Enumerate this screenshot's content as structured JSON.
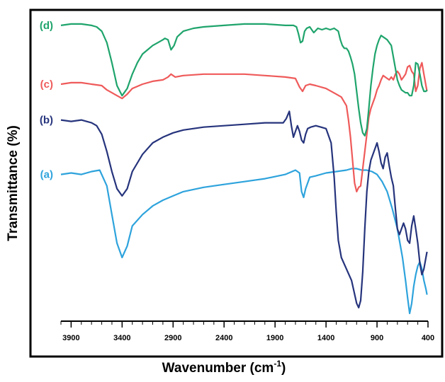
{
  "chart_data": {
    "type": "line",
    "title": "",
    "xlabel": "Wavenumber (cm",
    "xlabel_sup": "-1",
    "xlabel_tail": ")",
    "ylabel": "Transmittance (%)",
    "xlim": [
      4000,
      400
    ],
    "x_reversed": true,
    "x_ticks": [
      3900,
      3400,
      2900,
      2400,
      1900,
      1400,
      900,
      400
    ],
    "x_tick_labels": [
      "3900",
      "3400",
      "2900",
      "2400",
      "1900",
      "1400",
      "900",
      "400"
    ],
    "ylim": [
      0,
      100
    ],
    "y_ticks_shown": false,
    "grid": false,
    "legend": "inline-left",
    "series": [
      {
        "name": "(a)",
        "color": "#2ea3dc",
        "x": [
          4000,
          3900,
          3800,
          3700,
          3620,
          3550,
          3500,
          3450,
          3400,
          3350,
          3300,
          3200,
          3100,
          3000,
          2900,
          2800,
          2600,
          2400,
          2200,
          2000,
          1800,
          1700,
          1660,
          1640,
          1620,
          1600,
          1560,
          1500,
          1400,
          1300,
          1200,
          1150,
          1100,
          1050,
          1000,
          950,
          900,
          850,
          800,
          750,
          700,
          650,
          620,
          600,
          580,
          560,
          540,
          520,
          500,
          480,
          460,
          440,
          420,
          410
        ],
        "y": [
          49.0,
          49.5,
          49.0,
          50.0,
          50.5,
          45.0,
          35.0,
          25.0,
          20.0,
          24.0,
          31.0,
          35.0,
          38.0,
          40.0,
          41.5,
          43.0,
          44.5,
          45.5,
          46.5,
          47.5,
          49.0,
          50.5,
          49.5,
          43.0,
          41.0,
          44.0,
          48.0,
          48.5,
          49.5,
          50.0,
          50.5,
          51.0,
          51.0,
          50.5,
          50.5,
          50.0,
          49.0,
          46.5,
          43.0,
          37.0,
          30.0,
          20.0,
          12.0,
          6.0,
          0.5,
          4.0,
          10.0,
          14.0,
          17.0,
          18.5,
          16.0,
          12.0,
          9.0,
          7.0
        ]
      },
      {
        "name": "(b)",
        "color": "#26347c",
        "x": [
          4000,
          3900,
          3800,
          3700,
          3650,
          3600,
          3550,
          3500,
          3450,
          3400,
          3350,
          3300,
          3200,
          3100,
          3000,
          2900,
          2800,
          2600,
          2400,
          2200,
          2000,
          1900,
          1820,
          1790,
          1760,
          1740,
          1720,
          1700,
          1680,
          1660,
          1640,
          1620,
          1600,
          1580,
          1550,
          1500,
          1450,
          1400,
          1350,
          1320,
          1300,
          1280,
          1250,
          1200,
          1150,
          1100,
          1080,
          1060,
          1040,
          1020,
          1000,
          980,
          960,
          940,
          920,
          900,
          880,
          860,
          840,
          820,
          800,
          780,
          760,
          740,
          720,
          700,
          680,
          660,
          640,
          620,
          600,
          580,
          560,
          540,
          520,
          500,
          480,
          460,
          440,
          420,
          410
        ],
        "y": [
          68.0,
          67.5,
          68.0,
          67.0,
          66.0,
          63.0,
          57.0,
          50.0,
          44.0,
          41.5,
          44.0,
          50.0,
          56.0,
          60.0,
          62.0,
          63.5,
          64.5,
          65.5,
          66.0,
          66.5,
          67.0,
          67.0,
          67.0,
          68.5,
          71.0,
          66.0,
          62.0,
          64.0,
          66.0,
          64.0,
          61.0,
          60.0,
          63.0,
          65.0,
          65.5,
          66.0,
          65.5,
          65.0,
          60.0,
          48.0,
          36.0,
          26.0,
          20.0,
          16.0,
          12.0,
          4.0,
          2.5,
          5.0,
          15.0,
          30.0,
          43.0,
          50.0,
          54.0,
          56.0,
          58.0,
          60.0,
          57.0,
          53.0,
          51.0,
          55.0,
          56.5,
          52.0,
          48.0,
          45.0,
          37.0,
          30.0,
          28.0,
          30.0,
          32.0,
          30.0,
          26.0,
          25.0,
          31.0,
          34.5,
          30.0,
          25.0,
          18.0,
          14.0,
          16.0,
          20.0,
          22.0
        ]
      },
      {
        "name": "(c)",
        "color": "#ef5a5a",
        "x": [
          4000,
          3900,
          3800,
          3700,
          3600,
          3550,
          3500,
          3450,
          3400,
          3350,
          3300,
          3200,
          3100,
          3000,
          2950,
          2920,
          2880,
          2800,
          2600,
          2400,
          2200,
          2000,
          1800,
          1700,
          1660,
          1630,
          1600,
          1560,
          1500,
          1400,
          1350,
          1300,
          1250,
          1200,
          1180,
          1160,
          1140,
          1120,
          1100,
          1080,
          1060,
          1040,
          1020,
          1000,
          980,
          960,
          940,
          920,
          900,
          880,
          860,
          840,
          820,
          800,
          780,
          760,
          740,
          720,
          700,
          680,
          660,
          640,
          620,
          600,
          580,
          560,
          540,
          520,
          500,
          480,
          460,
          440,
          420,
          410
        ],
        "y": [
          80.5,
          81.0,
          81.0,
          80.5,
          80.0,
          78.5,
          77.5,
          76.5,
          75.5,
          77.0,
          79.0,
          80.5,
          81.5,
          82.0,
          83.0,
          84.0,
          83.0,
          83.5,
          84.0,
          84.0,
          84.0,
          83.5,
          83.0,
          82.5,
          79.5,
          78.0,
          80.0,
          80.5,
          80.0,
          79.0,
          78.0,
          77.0,
          76.0,
          73.0,
          68.0,
          62.0,
          54.0,
          46.0,
          43.0,
          44.5,
          45.0,
          51.0,
          57.0,
          63.0,
          69.0,
          72.0,
          74.0,
          76.0,
          78.5,
          80.0,
          82.0,
          83.5,
          83.0,
          82.5,
          82.0,
          83.0,
          82.0,
          84.0,
          85.0,
          84.0,
          82.0,
          83.0,
          84.0,
          86.5,
          87.0,
          85.0,
          84.0,
          78.0,
          80.0,
          86.0,
          88.0,
          84.0,
          80.0,
          78.0
        ]
      },
      {
        "name": "(d)",
        "color": "#1fa46c",
        "x": [
          4000,
          3900,
          3800,
          3700,
          3650,
          3600,
          3550,
          3500,
          3450,
          3400,
          3350,
          3300,
          3250,
          3200,
          3150,
          3100,
          3050,
          3000,
          2980,
          2950,
          2920,
          2890,
          2860,
          2800,
          2700,
          2600,
          2400,
          2200,
          2000,
          1800,
          1720,
          1690,
          1670,
          1650,
          1630,
          1610,
          1590,
          1560,
          1520,
          1480,
          1440,
          1400,
          1360,
          1320,
          1280,
          1260,
          1240,
          1220,
          1200,
          1180,
          1160,
          1140,
          1120,
          1100,
          1080,
          1060,
          1040,
          1020,
          1000,
          980,
          960,
          940,
          920,
          900,
          880,
          860,
          840,
          820,
          800,
          780,
          760,
          740,
          720,
          700,
          680,
          660,
          640,
          620,
          600,
          580,
          560,
          540,
          520,
          500,
          480,
          460,
          440,
          420,
          410
        ],
        "y": [
          101.0,
          101.5,
          101.5,
          101.0,
          100.5,
          99.0,
          95.0,
          88.0,
          80.0,
          76.5,
          79.0,
          84.0,
          88.0,
          91.0,
          92.5,
          94.0,
          95.0,
          96.0,
          96.5,
          96.0,
          92.5,
          94.0,
          97.0,
          99.0,
          100.0,
          100.5,
          101.0,
          101.5,
          101.5,
          101.0,
          101.0,
          100.5,
          98.0,
          95.0,
          95.5,
          99.0,
          100.0,
          100.5,
          98.5,
          100.0,
          99.5,
          100.0,
          99.5,
          100.0,
          99.0,
          96.0,
          94.0,
          93.0,
          93.0,
          92.0,
          90.0,
          87.5,
          84.0,
          78.0,
          72.0,
          67.0,
          63.5,
          62.5,
          65.0,
          72.0,
          80.0,
          86.0,
          91.0,
          94.0,
          96.0,
          97.5,
          97.0,
          96.5,
          96.0,
          95.0,
          94.0,
          90.0,
          86.0,
          82.0,
          80.0,
          78.5,
          78.0,
          77.5,
          77.5,
          76.5,
          76.5,
          80.0,
          88.0,
          87.5,
          84.0,
          80.0,
          78.0,
          78.0,
          78.5
        ]
      }
    ]
  }
}
